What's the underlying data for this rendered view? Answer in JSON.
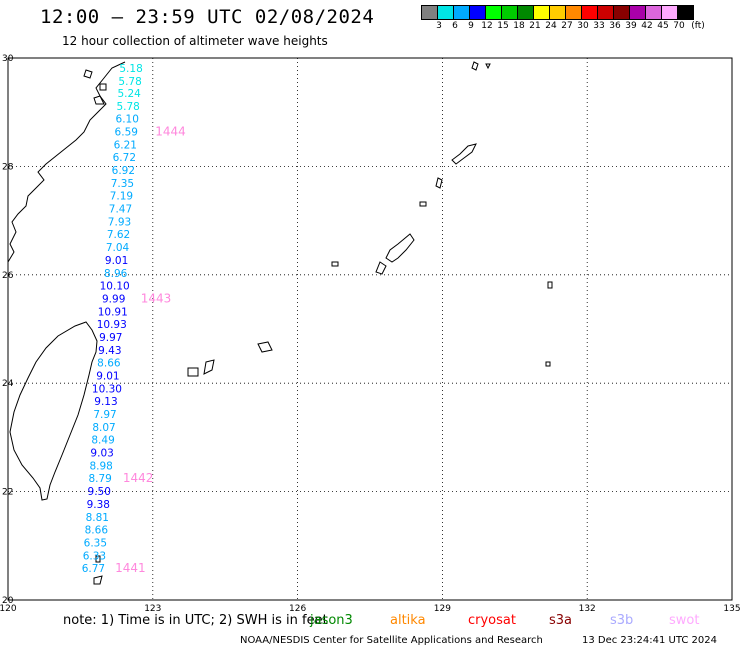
{
  "header": {
    "title": "12:00 – 23:59 UTC 02/08/2024",
    "subtitle": "12 hour collection of altimeter wave heights"
  },
  "colorbar": {
    "colors": [
      "#808080",
      "#00e5e5",
      "#00aaff",
      "#0000ff",
      "#00ff00",
      "#00cc00",
      "#008800",
      "#ffff00",
      "#ffcc00",
      "#ff8800",
      "#ff0000",
      "#cc0000",
      "#880000",
      "#aa00aa",
      "#dd66dd",
      "#ffaaff",
      "#000000"
    ],
    "labels": [
      "3",
      "6",
      "9",
      "12",
      "15",
      "18",
      "21",
      "24",
      "27",
      "30",
      "33",
      "36",
      "39",
      "42",
      "45",
      "70"
    ],
    "unit": "(ft)"
  },
  "map": {
    "lon_range": [
      120,
      135
    ],
    "lat_range": [
      20,
      30
    ],
    "x_ticks": [
      "120",
      "123",
      "126",
      "129",
      "132",
      "135"
    ],
    "y_ticks": [
      "30",
      "28",
      "26",
      "24",
      "22",
      "20"
    ]
  },
  "observations": [
    {
      "lat": 29.82,
      "lon": 122.55,
      "value": "5.18",
      "color": "#00e5e5"
    },
    {
      "lat": 29.58,
      "lon": 122.53,
      "value": "5.78",
      "color": "#00e5e5"
    },
    {
      "lat": 29.35,
      "lon": 122.51,
      "value": "5.24",
      "color": "#00e5e5"
    },
    {
      "lat": 29.11,
      "lon": 122.49,
      "value": "5.78",
      "color": "#00e5e5"
    },
    {
      "lat": 28.88,
      "lon": 122.47,
      "value": "6.10",
      "color": "#00aaff"
    },
    {
      "lat": 28.64,
      "lon": 122.45,
      "value": "6.59",
      "color": "#00aaff"
    },
    {
      "lat": 28.4,
      "lon": 122.43,
      "value": "6.21",
      "color": "#00aaff"
    },
    {
      "lat": 28.17,
      "lon": 122.41,
      "value": "6.72",
      "color": "#00aaff"
    },
    {
      "lat": 27.93,
      "lon": 122.39,
      "value": "6.92",
      "color": "#00aaff"
    },
    {
      "lat": 27.69,
      "lon": 122.37,
      "value": "7.35",
      "color": "#00aaff"
    },
    {
      "lat": 27.46,
      "lon": 122.35,
      "value": "7.19",
      "color": "#00aaff"
    },
    {
      "lat": 27.22,
      "lon": 122.33,
      "value": "7.47",
      "color": "#00aaff"
    },
    {
      "lat": 26.98,
      "lon": 122.31,
      "value": "7.93",
      "color": "#00aaff"
    },
    {
      "lat": 26.75,
      "lon": 122.29,
      "value": "7.62",
      "color": "#00aaff"
    },
    {
      "lat": 26.51,
      "lon": 122.27,
      "value": "7.04",
      "color": "#00aaff"
    },
    {
      "lat": 26.27,
      "lon": 122.25,
      "value": "9.01",
      "color": "#0000ff"
    },
    {
      "lat": 26.03,
      "lon": 122.23,
      "value": "8.96",
      "color": "#00aaff"
    },
    {
      "lat": 25.8,
      "lon": 122.21,
      "value": "10.10",
      "color": "#0000ff"
    },
    {
      "lat": 25.56,
      "lon": 122.19,
      "value": "9.99",
      "color": "#0000ff"
    },
    {
      "lat": 25.32,
      "lon": 122.17,
      "value": "10.91",
      "color": "#0000ff"
    },
    {
      "lat": 25.09,
      "lon": 122.15,
      "value": "10.93",
      "color": "#0000ff"
    },
    {
      "lat": 24.85,
      "lon": 122.13,
      "value": "9.97",
      "color": "#0000ff"
    },
    {
      "lat": 24.61,
      "lon": 122.11,
      "value": "9.43",
      "color": "#0000ff"
    },
    {
      "lat": 24.38,
      "lon": 122.09,
      "value": "8.66",
      "color": "#00aaff"
    },
    {
      "lat": 24.14,
      "lon": 122.07,
      "value": "9.01",
      "color": "#0000ff"
    },
    {
      "lat": 23.9,
      "lon": 122.05,
      "value": "10.30",
      "color": "#0000ff"
    },
    {
      "lat": 23.67,
      "lon": 122.03,
      "value": "9.13",
      "color": "#0000ff"
    },
    {
      "lat": 23.43,
      "lon": 122.01,
      "value": "7.97",
      "color": "#00aaff"
    },
    {
      "lat": 23.19,
      "lon": 121.99,
      "value": "8.07",
      "color": "#00aaff"
    },
    {
      "lat": 22.96,
      "lon": 121.97,
      "value": "8.49",
      "color": "#00aaff"
    },
    {
      "lat": 22.72,
      "lon": 121.95,
      "value": "9.03",
      "color": "#0000ff"
    },
    {
      "lat": 22.48,
      "lon": 121.93,
      "value": "8.98",
      "color": "#00aaff"
    },
    {
      "lat": 22.25,
      "lon": 121.91,
      "value": "8.79",
      "color": "#00aaff"
    },
    {
      "lat": 22.01,
      "lon": 121.89,
      "value": "9.50",
      "color": "#0000ff"
    },
    {
      "lat": 21.77,
      "lon": 121.87,
      "value": "9.38",
      "color": "#0000ff"
    },
    {
      "lat": 21.53,
      "lon": 121.85,
      "value": "8.81",
      "color": "#00aaff"
    },
    {
      "lat": 21.3,
      "lon": 121.83,
      "value": "8.66",
      "color": "#00aaff"
    },
    {
      "lat": 21.06,
      "lon": 121.81,
      "value": "6.35",
      "color": "#00aaff"
    },
    {
      "lat": 20.82,
      "lon": 121.79,
      "value": "6.33",
      "color": "#00aaff"
    },
    {
      "lat": 20.59,
      "lon": 121.77,
      "value": "6.77",
      "color": "#00aaff"
    }
  ],
  "passes": [
    {
      "lat": 28.64,
      "lon": 123.05,
      "label": "1444",
      "color": "#ff88dd"
    },
    {
      "lat": 25.56,
      "lon": 122.75,
      "label": "1443",
      "color": "#ff88dd"
    },
    {
      "lat": 22.25,
      "lon": 122.38,
      "label": "1442",
      "color": "#ff88dd"
    },
    {
      "lat": 20.59,
      "lon": 122.22,
      "label": "1441",
      "color": "#ff88dd"
    }
  ],
  "footer": {
    "note": "note:  1) Time is in UTC; 2) SWH is in feet",
    "legend": [
      {
        "label": "jason3",
        "color": "#008800"
      },
      {
        "label": "altika",
        "color": "#ff8800"
      },
      {
        "label": "cryosat",
        "color": "#ff0000"
      },
      {
        "label": "s3a",
        "color": "#880000"
      },
      {
        "label": "s3b",
        "color": "#aaaaff"
      },
      {
        "label": "swot",
        "color": "#ffaaff"
      }
    ],
    "credit": "NOAA/NESDIS Center for Satellite Applications and Research",
    "timestamp": "13 Dec 23:24:41 UTC 2024"
  }
}
